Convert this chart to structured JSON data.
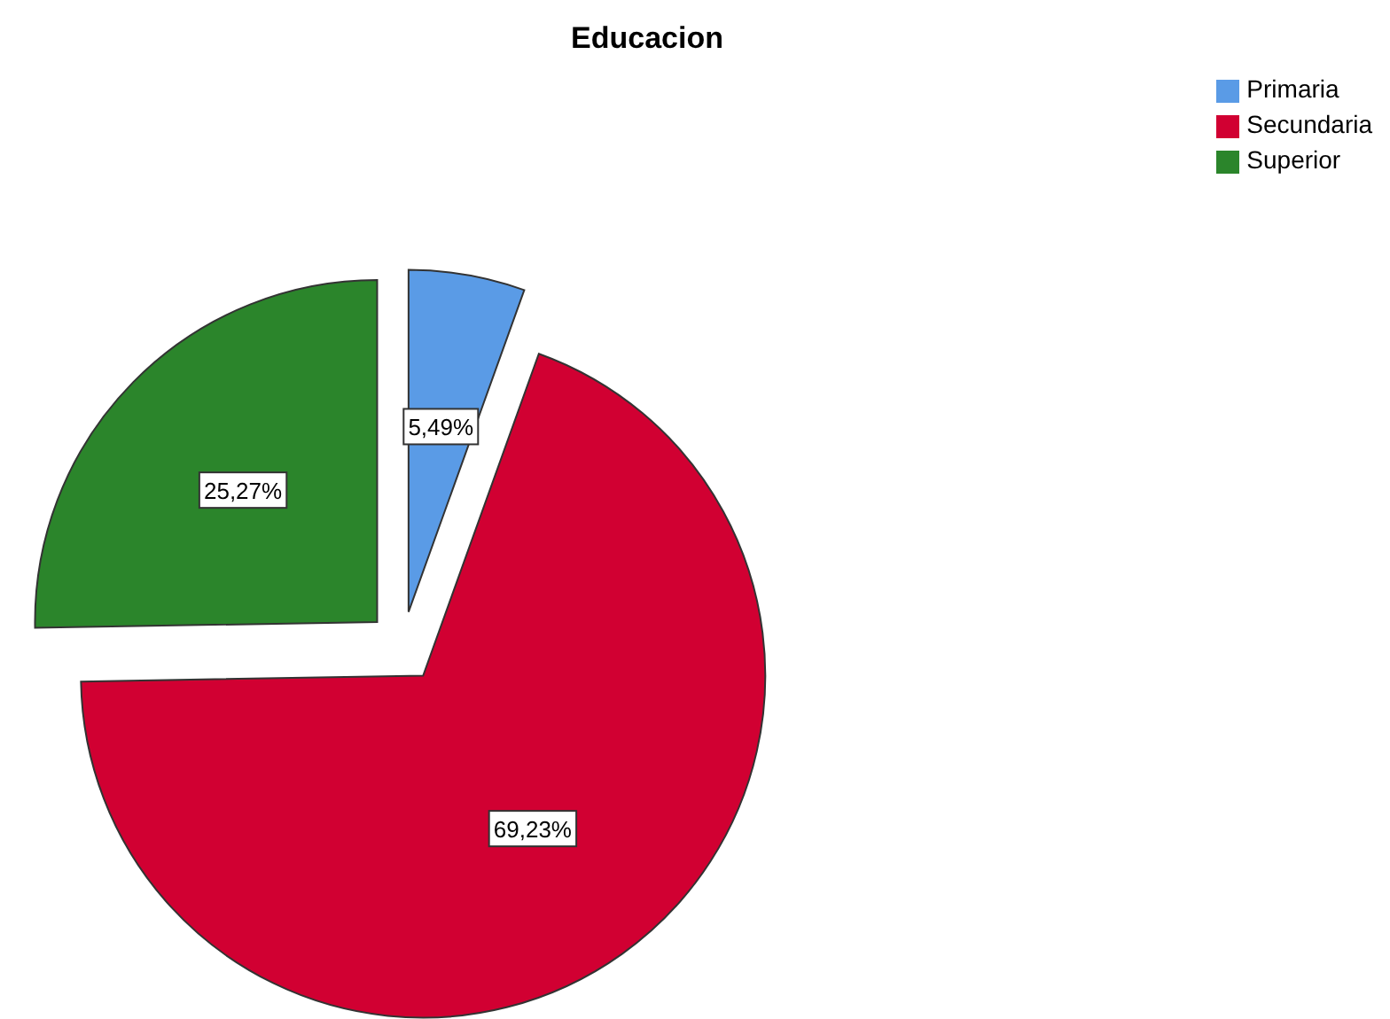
{
  "chart_data": {
    "type": "pie",
    "title": "Educacion",
    "categories": [
      "Primaria",
      "Secundaria",
      "Superior"
    ],
    "values": [
      5.49,
      69.23,
      25.27
    ],
    "colors": [
      "#5a9be6",
      "#d10032",
      "#2b852b"
    ],
    "value_labels": [
      "5,49%",
      "69,23%",
      "25,27%"
    ],
    "legend": "top right"
  }
}
